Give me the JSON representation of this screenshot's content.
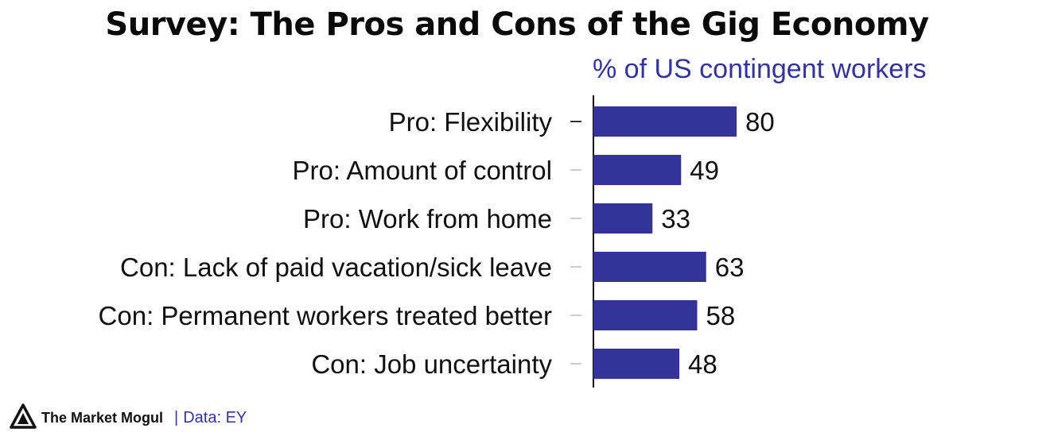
{
  "title": "Survey: The Pros and Cons of the Gig Economy",
  "subtitle": "% of US contingent workers",
  "footer": {
    "brand": "The Market Mogul",
    "separator": "|",
    "source": "Data: EY",
    "logo_icon": "mogul-logo-icon"
  },
  "colors": {
    "bar": "#33339a",
    "subtitle": "#33339a",
    "text": "#111111"
  },
  "chart_data": {
    "type": "bar",
    "orientation": "horizontal",
    "categories": [
      "Pro: Flexibility",
      "Pro: Amount of control",
      "Pro: Work from home",
      "Con: Lack of paid vacation/sick leave",
      "Con: Permanent workers treated better",
      "Con: Job uncertainty"
    ],
    "values": [
      80,
      49,
      33,
      63,
      58,
      48
    ],
    "title": "Survey: The Pros and Cons of the Gig Economy",
    "subtitle": "% of US contingent workers",
    "xlabel": "",
    "ylabel": "",
    "xlim": [
      0,
      100
    ],
    "grid": false,
    "data_labels": true
  }
}
